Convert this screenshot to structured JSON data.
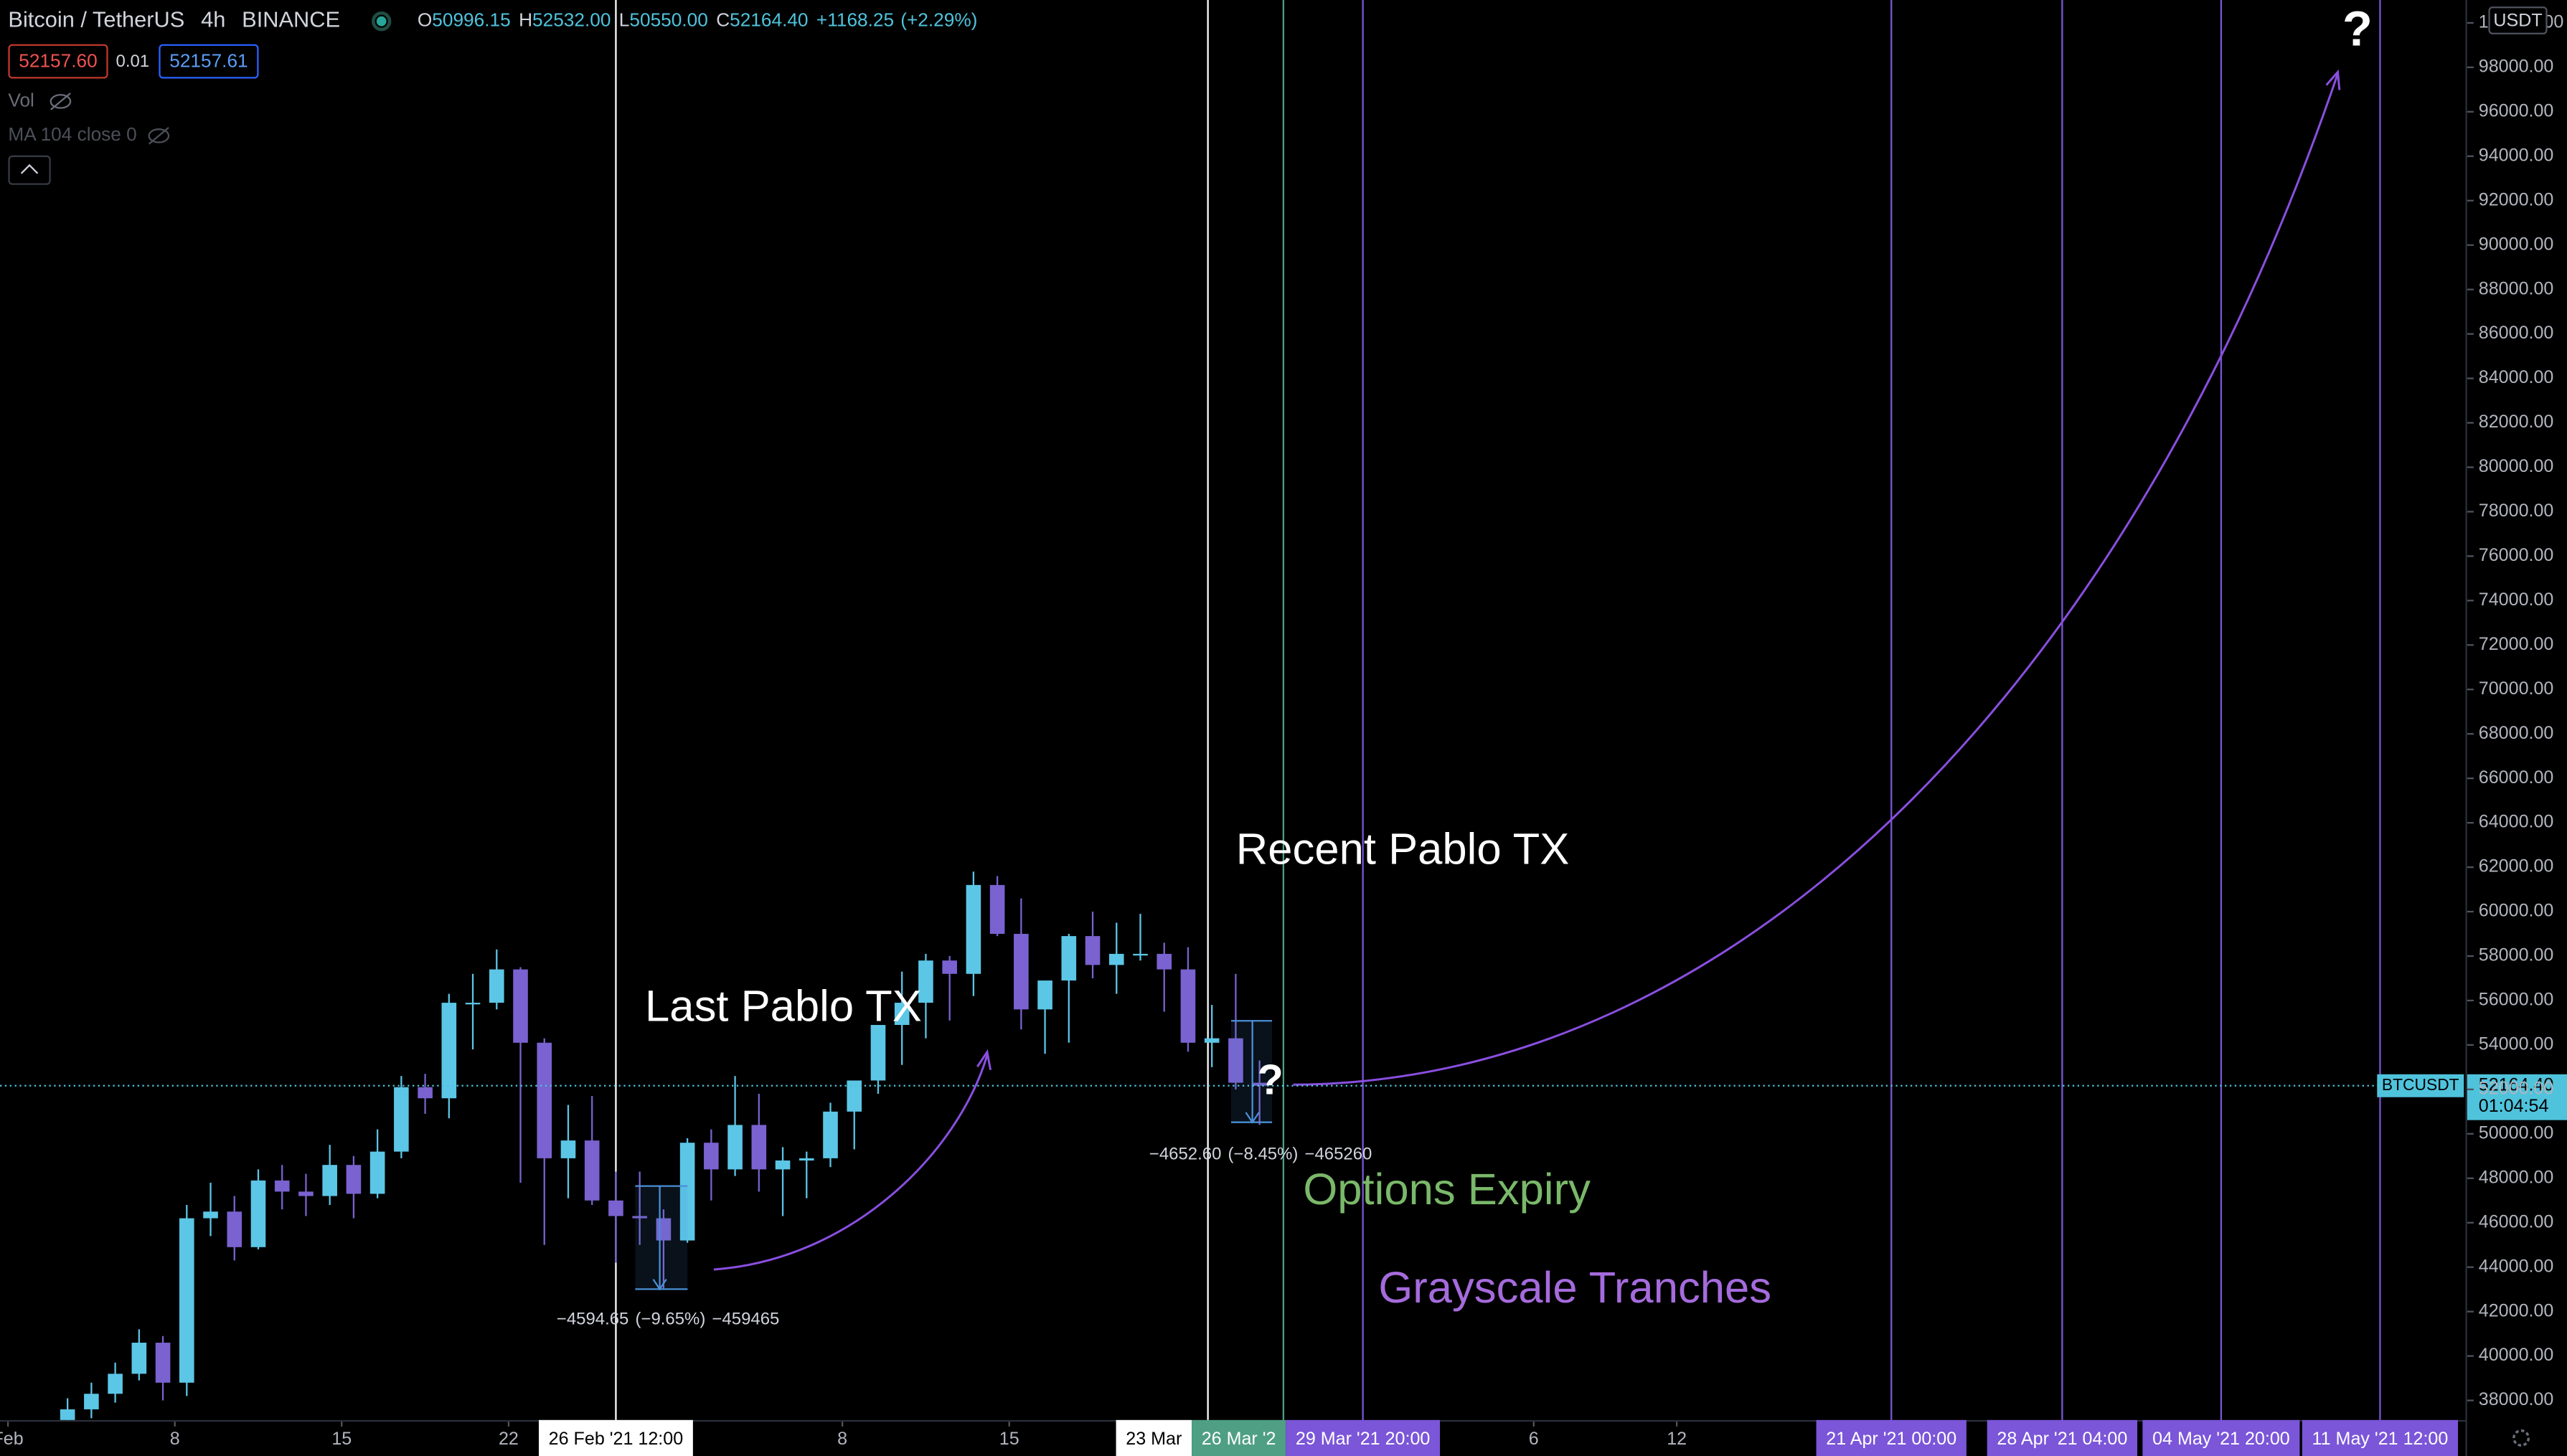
{
  "chart_data": {
    "type": "candlestick",
    "title": "Bitcoin / TetherUS",
    "interval": "4h",
    "exchange": "BINANCE",
    "ohlc_header": {
      "open_prefix": "O",
      "open": 50996.15,
      "high_prefix": "H",
      "high": {
        "value": 52532,
        "label": "52532.00"
      },
      "low_prefix": "L",
      "low": {
        "value": 50550,
        "label": "50550.00"
      },
      "close_prefix": "C",
      "close": {
        "value": 52164.4,
        "label": "52164.40"
      },
      "change": {
        "value": 1168.25,
        "label": "+1168.25"
      },
      "change_pct": {
        "value": 2.29,
        "label": "(+2.29%)"
      }
    },
    "bid": {
      "value": 52157.6,
      "label": "52157.60"
    },
    "spread": 0.01,
    "ask": 52157.61,
    "indicators": [
      "Vol",
      "MA 104 close 0"
    ],
    "x": [
      "2021-02-03",
      "2021-02-04",
      "2021-02-05",
      "2021-02-06",
      "2021-02-07",
      "2021-02-08",
      "2021-02-09",
      "2021-02-10",
      "2021-02-11",
      "2021-02-12",
      "2021-02-13",
      "2021-02-14",
      "2021-02-15",
      "2021-02-16",
      "2021-02-17",
      "2021-02-18",
      "2021-02-19",
      "2021-02-20",
      "2021-02-21",
      "2021-02-22",
      "2021-02-23",
      "2021-02-24",
      "2021-02-25",
      "2021-02-26",
      "2021-02-27",
      "2021-02-28",
      "2021-03-01",
      "2021-03-02",
      "2021-03-03",
      "2021-03-04",
      "2021-03-05",
      "2021-03-06",
      "2021-03-07",
      "2021-03-08",
      "2021-03-09",
      "2021-03-10",
      "2021-03-11",
      "2021-03-12",
      "2021-03-13",
      "2021-03-14",
      "2021-03-15",
      "2021-03-16",
      "2021-03-17",
      "2021-03-18",
      "2021-03-19",
      "2021-03-20",
      "2021-03-21",
      "2021-03-22",
      "2021-03-23",
      "2021-03-24",
      "2021-03-25"
    ],
    "open": [
      36900,
      37600,
      38300,
      39200,
      40600,
      38800,
      46200,
      46500,
      44900,
      47900,
      47400,
      47200,
      48600,
      47300,
      49200,
      52100,
      51600,
      55900,
      55900,
      57400,
      54100,
      48900,
      49700,
      47000,
      46300,
      46200,
      45200,
      49600,
      48400,
      50400,
      48400,
      48800,
      48900,
      51000,
      52400,
      54900,
      55900,
      57800,
      57200,
      61200,
      59000,
      55600,
      56900,
      58900,
      57600,
      58100,
      58100,
      57400,
      54100,
      54300,
      52300
    ],
    "high": [
      38100,
      38800,
      39700,
      41200,
      40900,
      46800,
      47800,
      47200,
      48400,
      48600,
      48200,
      49500,
      49000,
      50200,
      52600,
      52700,
      56300,
      57200,
      58300,
      57500,
      54300,
      51300,
      51700,
      48300,
      48300,
      46600,
      49800,
      50200,
      52600,
      51800,
      49400,
      49200,
      51400,
      52400,
      54900,
      57300,
      58100,
      58000,
      61800,
      61600,
      60600,
      56900,
      59000,
      60000,
      59500,
      59900,
      58600,
      58400,
      55800,
      57200,
      53300
    ],
    "low": [
      36600,
      37200,
      37900,
      38900,
      38000,
      38200,
      45400,
      44300,
      44800,
      46600,
      46300,
      46800,
      46200,
      47100,
      48900,
      50900,
      50700,
      53800,
      55600,
      47800,
      45000,
      47100,
      46800,
      44200,
      45000,
      43000,
      45100,
      47000,
      48100,
      47400,
      46300,
      47100,
      48500,
      49300,
      51800,
      53100,
      54300,
      55100,
      56200,
      58900,
      54700,
      53600,
      54100,
      57000,
      56300,
      57800,
      55500,
      53700,
      53000,
      52000,
      50400
    ],
    "close": [
      37600,
      38300,
      39200,
      40600,
      38800,
      46200,
      46500,
      44900,
      47900,
      47400,
      47200,
      48600,
      47300,
      49200,
      52100,
      51600,
      55900,
      55900,
      57400,
      54100,
      48900,
      49700,
      47000,
      46300,
      46200,
      45200,
      49600,
      48400,
      50400,
      48400,
      48800,
      48900,
      51000,
      52400,
      54900,
      55900,
      57800,
      57200,
      61200,
      59000,
      55600,
      56900,
      58900,
      57600,
      58100,
      58100,
      57400,
      54100,
      54300,
      52300,
      52164.4
    ],
    "up_color": "#5cc6e6",
    "down_color": "#7a62d0",
    "xlim": [
      "2021-01-31T16:00",
      "2021-05-15T02:00"
    ],
    "xticks": [
      {
        "value": "2021-02-01",
        "label": "Feb"
      },
      {
        "value": "2021-02-08",
        "label": "8"
      },
      {
        "value": "2021-02-15",
        "label": "15"
      },
      {
        "value": "2021-02-22",
        "label": "22"
      },
      {
        "value": "2021-03-08",
        "label": "8"
      },
      {
        "value": "2021-03-15",
        "label": "15"
      },
      {
        "value": "2021-04-06",
        "label": "6"
      },
      {
        "value": "2021-04-12",
        "label": "12"
      }
    ],
    "ylim": [
      37120,
      101030
    ],
    "yticks": [
      {
        "value": 38000,
        "label": "38000.00"
      },
      {
        "value": 40000,
        "label": "40000.00"
      },
      {
        "value": 42000,
        "label": "42000.00"
      },
      {
        "value": 44000,
        "label": "44000.00"
      },
      {
        "value": 46000,
        "label": "46000.00"
      },
      {
        "value": 48000,
        "label": "48000.00"
      },
      {
        "value": 50000,
        "label": "50000.00"
      },
      {
        "value": 52000,
        "label": "52000.00"
      },
      {
        "value": 54000,
        "label": "54000.00"
      },
      {
        "value": 56000,
        "label": "56000.00"
      },
      {
        "value": 58000,
        "label": "58000.00"
      },
      {
        "value": 60000,
        "label": "60000.00"
      },
      {
        "value": 62000,
        "label": "62000.00"
      },
      {
        "value": 64000,
        "label": "64000.00"
      },
      {
        "value": 66000,
        "label": "66000.00"
      },
      {
        "value": 68000,
        "label": "68000.00"
      },
      {
        "value": 70000,
        "label": "70000.00"
      },
      {
        "value": 72000,
        "label": "72000.00"
      },
      {
        "value": 74000,
        "label": "74000.00"
      },
      {
        "value": 76000,
        "label": "76000.00"
      },
      {
        "value": 78000,
        "label": "78000.00"
      },
      {
        "value": 80000,
        "label": "80000.00"
      },
      {
        "value": 82000,
        "label": "82000.00"
      },
      {
        "value": 84000,
        "label": "84000.00"
      },
      {
        "value": 86000,
        "label": "86000.00"
      },
      {
        "value": 88000,
        "label": "88000.00"
      },
      {
        "value": 90000,
        "label": "90000.00"
      },
      {
        "value": 92000,
        "label": "92000.00"
      },
      {
        "value": 94000,
        "label": "94000.00"
      },
      {
        "value": 96000,
        "label": "96000.00"
      },
      {
        "value": 98000,
        "label": "98000.00"
      },
      {
        "value": 100000,
        "label": "100000.00"
      }
    ],
    "currency": "USDT",
    "last_price": {
      "symbol": "BTCUSDT",
      "value": 52164.4,
      "label": "52164.40",
      "countdown": "01:04:54",
      "color": "#4fc3dc"
    },
    "vlines": [
      {
        "x": "2021-02-26T12:00",
        "label": "26 Feb '21 12:00",
        "color": "#ffffff"
      },
      {
        "x": "2021-03-23T08:00",
        "label": "23 Mar",
        "color": "#ffffff"
      },
      {
        "x": "2021-03-26T12:00",
        "label": "26 Mar '2",
        "color": "#4f9f84"
      },
      {
        "x": "2021-03-29T20:00",
        "label": "29 Mar '21 20:00",
        "color": "#7b56d8"
      },
      {
        "x": "2021-04-21T00:00",
        "label": "21 Apr '21 00:00",
        "color": "#7b56d8"
      },
      {
        "x": "2021-04-28T04:00",
        "label": "28 Apr '21 04:00",
        "color": "#7b56d8"
      },
      {
        "x": "2021-05-04T20:00",
        "label": "04 May '21 20:00",
        "color": "#7b56d8"
      },
      {
        "x": "2021-05-11T12:00",
        "label": "11 May '21 12:00",
        "color": "#7b56d8"
      }
    ],
    "annotations": [
      {
        "text": "Last Pablo TX",
        "color": "#ffffff"
      },
      {
        "text": "Recent Pablo TX",
        "color": "#ffffff"
      },
      {
        "text": "Options Expiry",
        "color": "#7ab86a"
      },
      {
        "text": "Grayscale Tranches",
        "color": "#a56bdc"
      },
      {
        "text": "?",
        "color": "#ffffff"
      },
      {
        "text": "?",
        "color": "#ffffff"
      }
    ],
    "measures": [
      {
        "change": {
          "value": -4594.65,
          "label": "−4594.65"
        },
        "pct": {
          "value": -9.65,
          "label": "(−9.65%)"
        },
        "ticks": {
          "value": -459465,
          "label": "−459465"
        }
      },
      {
        "change": {
          "value": -4652.6,
          "label": "−4652.60"
        },
        "pct": {
          "value": -8.45,
          "label": "(−8.45%)"
        },
        "ticks": {
          "value": -465260,
          "label": "−465260"
        }
      }
    ]
  }
}
